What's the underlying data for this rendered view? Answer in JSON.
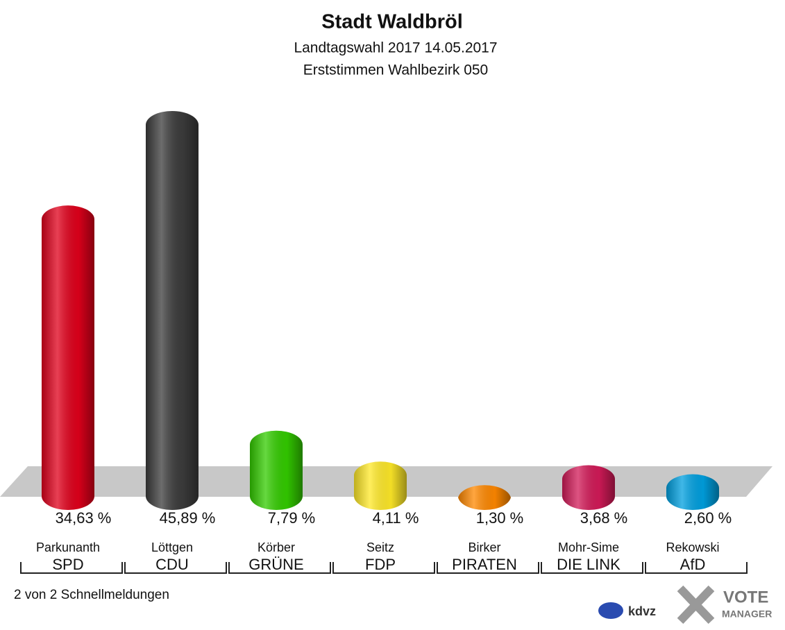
{
  "chart_data": {
    "type": "bar",
    "title": "Stadt Waldbröl",
    "subtitle": [
      "Landtagswahl 2017 14.05.2017",
      "Erststimmen Wahlbezirk 050"
    ],
    "categories": [
      "Parkunanth",
      "Löttgen",
      "Körber",
      "Seitz",
      "Birker",
      "Mohr-Sime",
      "Rekowski"
    ],
    "parties": [
      "SPD",
      "CDU",
      "GRÜNE",
      "FDP",
      "PIRATEN",
      "DIE LINK",
      "AfD"
    ],
    "values": [
      34.63,
      45.89,
      7.79,
      4.11,
      1.3,
      3.68,
      2.6
    ],
    "value_labels": [
      "34,63 %",
      "45,89 %",
      "7,79 %",
      "4,11 %",
      "1,30 %",
      "3,68 %",
      "2,60 %"
    ],
    "colors": [
      "#e0001b",
      "#3c3c3c",
      "#33cc00",
      "#ffe928",
      "#ff8800",
      "#d21a58",
      "#00a0e0"
    ],
    "footer": "2 von 2 Schnellmeldungen",
    "logo": [
      "kdvz",
      "VOTE",
      "MANAGER"
    ]
  }
}
